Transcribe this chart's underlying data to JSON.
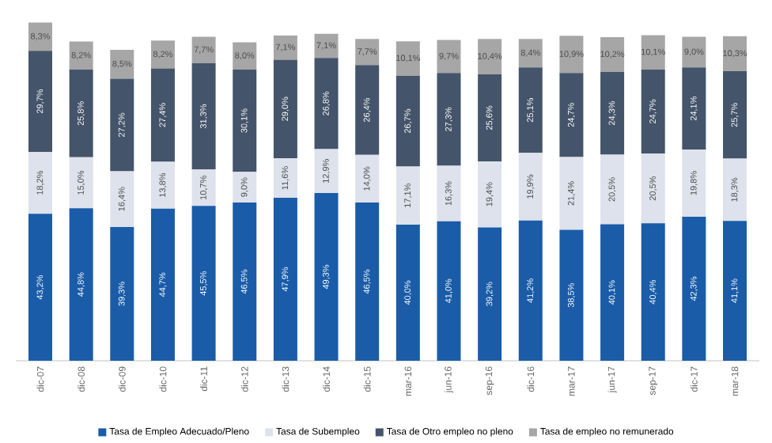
{
  "chart_data": {
    "type": "bar",
    "stacked": true,
    "legend": "bottom",
    "categories": [
      "dic-07",
      "dic-08",
      "dic-09",
      "dic-10",
      "dic-11",
      "dic-12",
      "dic-13",
      "dic-14",
      "dic-15",
      "mar-16",
      "jun-16",
      "sep-16",
      "dic-16",
      "mar-17",
      "jun-17",
      "sep-17",
      "dic-17",
      "mar-18"
    ],
    "series": [
      {
        "name": "Tasa de Empleo Adecuado/Pleno",
        "color": "#1a5ca8",
        "values": [
          43.2,
          44.8,
          39.3,
          44.7,
          45.5,
          46.5,
          47.9,
          49.3,
          46.5,
          40.0,
          41.0,
          39.2,
          41.2,
          38.5,
          40.1,
          40.4,
          42.3,
          41.1
        ],
        "value_labels": [
          "43,2%",
          "44,8%",
          "39,3%",
          "44,7%",
          "45,5%",
          "46,5%",
          "47,9%",
          "49,3%",
          "46,5%",
          "40,0%",
          "41,0%",
          "39,2%",
          "41,2%",
          "38,5%",
          "40,1%",
          "40,4%",
          "42,3%",
          "41,1%"
        ]
      },
      {
        "name": "Tasa de Subempleo",
        "color": "#dde2ec",
        "values": [
          18.2,
          15.0,
          16.4,
          13.8,
          10.7,
          9.0,
          11.6,
          12.9,
          14.0,
          17.1,
          16.3,
          19.4,
          19.9,
          21.4,
          20.5,
          20.5,
          19.8,
          18.3
        ],
        "value_labels": [
          "18,2%",
          "15,0%",
          "16,4%",
          "13,8%",
          "10,7%",
          "9,0%",
          "11,6%",
          "12,9%",
          "14,0%",
          "17,1%",
          "16,3%",
          "19,4%",
          "19,9%",
          "21,4%",
          "20,5%",
          "20,5%",
          "19,8%",
          "18,3%"
        ]
      },
      {
        "name": "Tasa de Otro empleo no pleno",
        "color": "#44546a",
        "values": [
          29.7,
          25.8,
          27.2,
          27.4,
          31.3,
          30.1,
          29.0,
          26.8,
          26.4,
          26.7,
          27.3,
          25.6,
          25.1,
          24.7,
          24.3,
          24.7,
          24.1,
          25.7
        ],
        "value_labels": [
          "29,7%",
          "25,8%",
          "27,2%",
          "27,4%",
          "31,3%",
          "30,1%",
          "29,0%",
          "26,8%",
          "26,4%",
          "26,7%",
          "27,3%",
          "25,6%",
          "25,1%",
          "24,7%",
          "24,3%",
          "24,7%",
          "24,1%",
          "25,7%"
        ]
      },
      {
        "name": "Tasa de empleo no remunerado",
        "color": "#a6a6a6",
        "values": [
          8.3,
          8.2,
          8.5,
          8.2,
          7.7,
          8.0,
          7.1,
          7.1,
          7.7,
          10.1,
          9.7,
          10.4,
          8.4,
          10.9,
          10.2,
          10.1,
          9.0,
          10.3
        ],
        "value_labels": [
          "8,3%",
          "8,2%",
          "8,5%",
          "8,2%",
          "7,7%",
          "8,0%",
          "7,1%",
          "7,1%",
          "7,7%",
          "10,1%",
          "9,7%",
          "10,4%",
          "8,4%",
          "10,9%",
          "10,2%",
          "10,1%",
          "9,0%",
          "10,3%"
        ]
      }
    ]
  }
}
